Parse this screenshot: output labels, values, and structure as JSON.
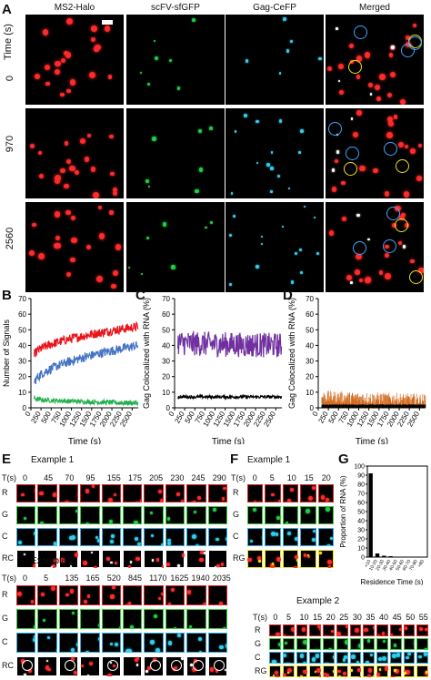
{
  "panel_letters": {
    "a": "A",
    "b": "B",
    "c": "C",
    "d": "D",
    "e": "E",
    "f": "F",
    "g": "G"
  },
  "panelA": {
    "columns": [
      "MS2-Halo",
      "scFV-sfGFP",
      "Gag-CeFP",
      "Merged"
    ],
    "row_axis_label": "Time (s)",
    "rows": [
      "0",
      "970",
      "2560"
    ]
  },
  "panelE": {
    "ex1_title": "Example 1",
    "ex1_time_label": "T(s)",
    "ex1_times": [
      "0",
      "45",
      "70",
      "95",
      "155",
      "175",
      "205",
      "230",
      "245",
      "290"
    ],
    "ex2_title": "Example 2",
    "ex2_time_label": "T(s)",
    "ex2_times": [
      "0",
      "5",
      "135",
      "165",
      "520",
      "845",
      "1170",
      "1625",
      "1940",
      "2035"
    ],
    "channels": [
      "R",
      "G",
      "C",
      "RC"
    ]
  },
  "panelF": {
    "ex1_title": "Example 1",
    "ex1_time_label": "T(s)",
    "ex1_times": [
      "0",
      "5",
      "10",
      "15",
      "20"
    ],
    "ex2_title": "Example 2",
    "ex2_times": [
      "0",
      "5",
      "10",
      "15",
      "20",
      "25",
      "30",
      "35",
      "40",
      "45",
      "50",
      "55"
    ],
    "ex2_time_label": "T(s)",
    "channels": [
      "R",
      "G",
      "C",
      "RG"
    ]
  },
  "chart_data": [
    {
      "id": "B",
      "type": "line",
      "ylabel": "Number of Signals",
      "xlabel": "Time (s)",
      "x_ticks": [
        "0",
        "250",
        "500",
        "750",
        "1000",
        "1250",
        "1500",
        "1750",
        "2000",
        "2250",
        "2500"
      ],
      "y_ticks": [
        "0",
        "10",
        "20",
        "30",
        "40",
        "50",
        "60",
        "70"
      ],
      "xlim": [
        0,
        2650
      ],
      "ylim": [
        0,
        70
      ],
      "series": [
        {
          "color": "#e8141b",
          "start": 33,
          "end": 52,
          "noise": 3
        },
        {
          "color": "#4472c4",
          "start": 15,
          "end": 40,
          "noise": 3
        },
        {
          "color": "#22b14c",
          "start": 6,
          "end": 3,
          "noise": 1.5
        }
      ]
    },
    {
      "id": "C",
      "type": "line",
      "ylabel": "Gag Colocalized with RNA (%)",
      "xlabel": "Time (s)",
      "x_ticks": [
        "0",
        "250",
        "500",
        "750",
        "1000",
        "1250",
        "1500",
        "1750",
        "2000",
        "2250",
        "2500"
      ],
      "y_ticks": [
        "0",
        "10",
        "20",
        "30",
        "40",
        "50",
        "60",
        "70"
      ],
      "xlim": [
        0,
        2650
      ],
      "ylim": [
        0,
        70
      ],
      "series": [
        {
          "color": "#7030a0",
          "start": 42,
          "end": 40,
          "noise": 8
        },
        {
          "color": "#000000",
          "start": 7,
          "end": 7,
          "noise": 1
        }
      ]
    },
    {
      "id": "D",
      "type": "bar",
      "ylabel": "Gag Colocalized with RNA (%)",
      "xlabel": "Time (s)",
      "x_ticks": [
        "0",
        "250",
        "500",
        "750",
        "1000",
        "1250",
        "1500",
        "1750",
        "2000",
        "2250",
        "2500"
      ],
      "y_ticks": [
        "0",
        "10",
        "20",
        "30",
        "40",
        "50",
        "60",
        "70"
      ],
      "xlim": [
        0,
        2650
      ],
      "ylim": [
        0,
        70
      ],
      "series": [
        {
          "color": "#d2691e",
          "start": 7,
          "end": 5,
          "noise": 4
        },
        {
          "color": "#000000",
          "start": 2,
          "end": 2,
          "noise": 0.3
        }
      ]
    },
    {
      "id": "G",
      "type": "bar",
      "ylabel": "Proportion of RNA (%)",
      "xlabel": "Residence Time (s)",
      "categories": [
        "<10",
        "10-20",
        "20-30",
        "30-40",
        "40-50",
        "50-60",
        "60-70",
        "70-80",
        ">80"
      ],
      "values": [
        92,
        4,
        1.5,
        1,
        0.5,
        0.3,
        0.2,
        0.1,
        0.2
      ],
      "y_ticks": [
        "0",
        "10",
        "20",
        "30",
        "40",
        "50",
        "60",
        "70",
        "80",
        "90",
        "100"
      ],
      "ylim": [
        0,
        100
      ]
    }
  ],
  "colors": {
    "red": "#ff2a2a",
    "green": "#22cc44",
    "cyan": "#33ccee",
    "yellow": "#f2e21a",
    "blue_ring": "#3fa6ff",
    "white": "#ffffff"
  }
}
